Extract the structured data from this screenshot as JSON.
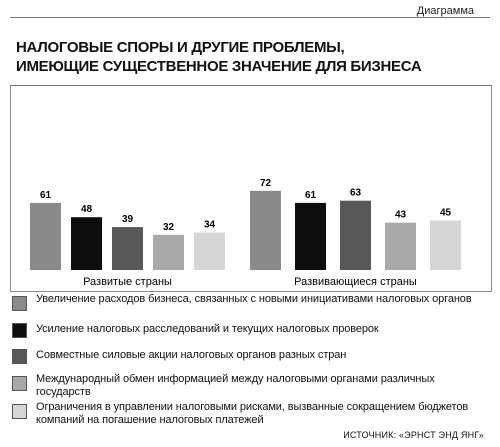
{
  "header": {
    "section_label": "Диаграмма",
    "title_line1": "НАЛОГОВЫЕ СПОРЫ И ДРУГИЕ ПРОБЛЕМЫ,",
    "title_line2": "ИМЕЮЩИЕ СУЩЕСТВЕННОЕ ЗНАЧЕНИЕ ДЛЯ БИЗНЕСА"
  },
  "chart_data": {
    "type": "bar",
    "categories": [
      "Развитые страны",
      "Развивающиеся страны"
    ],
    "series": [
      {
        "name": "Увеличение расходов бизнеса, связанных  с новыми инициативами налоговых органов",
        "values": [
          61,
          72
        ],
        "color": "#8a8a8a"
      },
      {
        "name": "Усиление налоговых расследований и текущих налоговых проверок",
        "values": [
          48,
          61
        ],
        "color": "#0d0d0d"
      },
      {
        "name": "Совместные силовые акции налоговых органов разных стран",
        "values": [
          39,
          63
        ],
        "color": "#585858"
      },
      {
        "name": "Международный обмен информацией между налоговыми органами различных государств",
        "values": [
          32,
          43
        ],
        "color": "#a9a9a9"
      },
      {
        "name": "Ограничения в управлении налоговыми рисками, вызванные сокращением бюджетов компаний на погашение налоговых платежей",
        "values": [
          34,
          45
        ],
        "color": "#d6d6d6"
      }
    ],
    "ylim": [
      0,
      80
    ],
    "grid": false,
    "legend_position": "bottom"
  },
  "legend": {
    "items": [
      {
        "text": "Увеличение расходов бизнеса, связанных  с новыми инициативами налоговых органов"
      },
      {
        "text": "Усиление налоговых расследований и текущих налоговых проверок"
      },
      {
        "text": "Совместные силовые акции налоговых органов разных стран"
      },
      {
        "text": "Международный обмен информацией между налоговыми органами различных государств"
      },
      {
        "text": "Ограничения в управлении налоговыми рисками, вызванные сокращением бюджетов компаний на погашение налоговых платежей"
      }
    ]
  },
  "footer": {
    "source": "ИСТОЧНИК: «ЭРНСТ ЭНД ЯНГ»"
  }
}
